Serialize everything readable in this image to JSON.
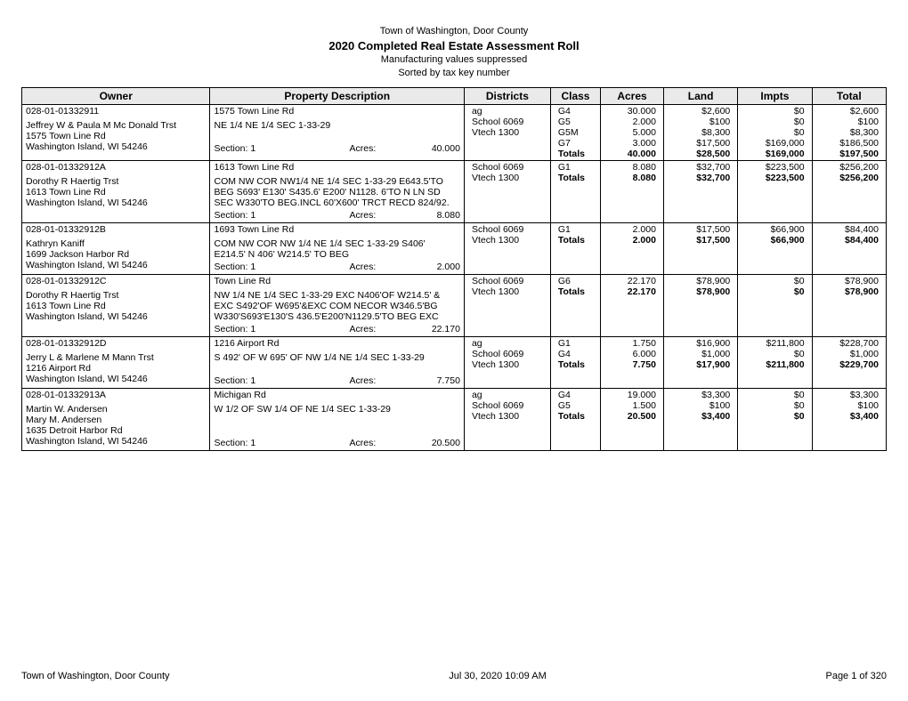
{
  "header": {
    "line1": "Town of Washington, Door County",
    "line2": "2020 Completed Real Estate Assessment Roll",
    "line3": "Manufacturing values suppressed",
    "line4": "Sorted by tax key number"
  },
  "columns": {
    "owner": "Owner",
    "desc": "Property Description",
    "districts": "Districts",
    "class": "Class",
    "acres": "Acres",
    "land": "Land",
    "impts": "Impts",
    "total": "Total"
  },
  "footer": {
    "left": "Town of Washington, Door County",
    "center": "Jul 30, 2020  10:09 AM",
    "right": "Page 1 of 320"
  },
  "records": [
    {
      "parcel": "028-01-01332911",
      "owner": [
        "Jeffrey W & Paula M Mc Donald Trst",
        "1575 Town Line Rd",
        "Washington Island, WI 54246"
      ],
      "addr": "1575 Town Line Rd",
      "legal": [
        "NE 1/4 NE 1/4 SEC 1-33-29"
      ],
      "section": "Section: 1",
      "secAcresLabel": "Acres:",
      "secAcres": "40.000",
      "districts": [
        "ag",
        "School 6069",
        "Vtech 1300"
      ],
      "classes": [
        {
          "c": "G4",
          "a": "30.000",
          "l": "$2,600",
          "i": "$0",
          "t": "$2,600"
        },
        {
          "c": "G5",
          "a": "2.000",
          "l": "$100",
          "i": "$0",
          "t": "$100"
        },
        {
          "c": "G5M",
          "a": "5.000",
          "l": "$8,300",
          "i": "$0",
          "t": "$8,300"
        },
        {
          "c": "G7",
          "a": "3.000",
          "l": "$17,500",
          "i": "$169,000",
          "t": "$186,500"
        }
      ],
      "totals": {
        "label": "Totals",
        "a": "40.000",
        "l": "$28,500",
        "i": "$169,000",
        "t": "$197,500"
      }
    },
    {
      "parcel": "028-01-01332912A",
      "owner": [
        "Dorothy R Haertig Trst",
        "1613 Town Line Rd",
        "Washington Island, WI 54246"
      ],
      "addr": "1613 Town Line Rd",
      "legal": [
        "COM NW COR NW1/4 NE 1/4 SEC 1-33-29 E643.5'TO",
        "BEG S693' E130' S435.6' E200' N1128. 6'TO N LN SD",
        "SEC W330'TO BEG.INCL 60'X600' TRCT RECD 824/92."
      ],
      "section": "Section: 1",
      "secAcresLabel": "Acres:",
      "secAcres": "8.080",
      "districts": [
        "School 6069",
        "Vtech 1300"
      ],
      "classes": [
        {
          "c": "G1",
          "a": "8.080",
          "l": "$32,700",
          "i": "$223,500",
          "t": "$256,200"
        }
      ],
      "totals": {
        "label": "Totals",
        "a": "8.080",
        "l": "$32,700",
        "i": "$223,500",
        "t": "$256,200"
      }
    },
    {
      "parcel": "028-01-01332912B",
      "owner": [
        "Kathryn Kaniff",
        "1699 Jackson Harbor Rd",
        "Washington Island, WI 54246"
      ],
      "addr": "1693 Town Line Rd",
      "legal": [
        "COM NW COR NW 1/4 NE 1/4 SEC 1-33-29 S406'",
        "E214.5' N 406' W214.5' TO BEG"
      ],
      "section": "Section: 1",
      "secAcresLabel": "Acres:",
      "secAcres": "2.000",
      "districts": [
        "School 6069",
        "Vtech 1300"
      ],
      "classes": [
        {
          "c": "G1",
          "a": "2.000",
          "l": "$17,500",
          "i": "$66,900",
          "t": "$84,400"
        }
      ],
      "totals": {
        "label": "Totals",
        "a": "2.000",
        "l": "$17,500",
        "i": "$66,900",
        "t": "$84,400"
      }
    },
    {
      "parcel": "028-01-01332912C",
      "owner": [
        "Dorothy R Haertig Trst",
        "1613 Town Line Rd",
        "Washington Island, WI 54246"
      ],
      "addr": "Town Line Rd",
      "legal": [
        "NW 1/4 NE 1/4 SEC 1-33-29 EXC N406'OF W214.5' &",
        "EXC S492'OF W695'&EXC COM NECOR W346.5'BG",
        "W330'S693'E130'S 436.5'E200'N1129.5'TO BEG EXC"
      ],
      "section": "Section: 1",
      "secAcresLabel": "Acres:",
      "secAcres": "22.170",
      "districts": [
        "School 6069",
        "Vtech 1300"
      ],
      "classes": [
        {
          "c": "G6",
          "a": "22.170",
          "l": "$78,900",
          "i": "$0",
          "t": "$78,900"
        }
      ],
      "totals": {
        "label": "Totals",
        "a": "22.170",
        "l": "$78,900",
        "i": "$0",
        "t": "$78,900"
      }
    },
    {
      "parcel": "028-01-01332912D",
      "owner": [
        "Jerry L & Marlene M Mann Trst",
        "1216 Airport Rd",
        "Washington Island, WI 54246"
      ],
      "addr": "1216 Airport Rd",
      "legal": [
        "S 492' OF W 695' OF NW 1/4 NE 1/4 SEC 1-33-29"
      ],
      "section": "Section: 1",
      "secAcresLabel": "Acres:",
      "secAcres": "7.750",
      "districts": [
        "ag",
        "School 6069",
        "Vtech 1300"
      ],
      "classes": [
        {
          "c": "G1",
          "a": "1.750",
          "l": "$16,900",
          "i": "$211,800",
          "t": "$228,700"
        },
        {
          "c": "G4",
          "a": "6.000",
          "l": "$1,000",
          "i": "$0",
          "t": "$1,000"
        }
      ],
      "totals": {
        "label": "Totals",
        "a": "7.750",
        "l": "$17,900",
        "i": "$211,800",
        "t": "$229,700"
      }
    },
    {
      "parcel": "028-01-01332913A",
      "owner": [
        "Martin W. Andersen",
        "Mary M. Andersen",
        "1635 Detroit Harbor Rd",
        "Washington Island, WI 54246"
      ],
      "addr": "Michigan Rd",
      "legal": [
        "W 1/2 OF SW 1/4 OF NE 1/4 SEC 1-33-29"
      ],
      "section": "Section: 1",
      "secAcresLabel": "Acres:",
      "secAcres": "20.500",
      "districts": [
        "ag",
        "School 6069",
        "Vtech 1300"
      ],
      "classes": [
        {
          "c": "G4",
          "a": "19.000",
          "l": "$3,300",
          "i": "$0",
          "t": "$3,300"
        },
        {
          "c": "G5",
          "a": "1.500",
          "l": "$100",
          "i": "$0",
          "t": "$100"
        }
      ],
      "totals": {
        "label": "Totals",
        "a": "20.500",
        "l": "$3,400",
        "i": "$0",
        "t": "$3,400"
      }
    }
  ]
}
